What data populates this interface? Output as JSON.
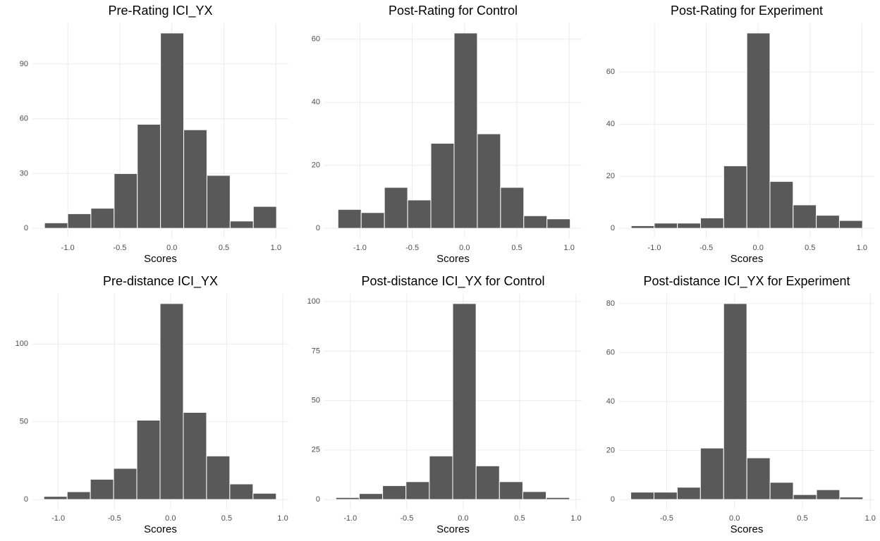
{
  "chart_data": [
    {
      "type": "histogram",
      "title": "Pre-Rating ICI_YX",
      "xlabel": "Scores",
      "color": "#595959",
      "grid": true,
      "bins": [
        -1.224,
        -1.001,
        -0.778,
        -0.555,
        -0.332,
        -0.109,
        0.114,
        0.337,
        0.56,
        0.783,
        1.006
      ],
      "values": [
        3,
        8,
        11,
        30,
        57,
        107,
        54,
        29,
        4,
        12
      ],
      "xlim": [
        -1.34,
        1.12
      ],
      "ylim": [
        -5.35,
        112.35
      ],
      "xticks": [
        {
          "value": -1,
          "label": "-1.0"
        },
        -0.5,
        {
          "value": 0,
          "label": "0.0"
        },
        0.5,
        {
          "value": 1,
          "label": "1.0"
        }
      ],
      "yticks": [
        0,
        30,
        60,
        90
      ]
    },
    {
      "type": "histogram",
      "title": "Post-Rating for Control",
      "xlabel": "Scores",
      "color": "#595959",
      "grid": true,
      "bins": [
        -1.21,
        -0.988,
        -0.766,
        -0.544,
        -0.322,
        -0.1,
        0.122,
        0.344,
        0.566,
        0.788,
        1.01
      ],
      "values": [
        6,
        5,
        13,
        9,
        27,
        62,
        30,
        13,
        4,
        3
      ],
      "xlim": [
        -1.34,
        1.12
      ],
      "ylim": [
        -3.1,
        65.1
      ],
      "xticks": [
        {
          "value": -1,
          "label": "-1.0"
        },
        -0.5,
        {
          "value": 0,
          "label": "0.0"
        },
        0.5,
        {
          "value": 1,
          "label": "1.0"
        }
      ],
      "yticks": [
        0,
        20,
        40,
        60
      ]
    },
    {
      "type": "histogram",
      "title": "Post-Rating for Experiment",
      "xlabel": "Scores",
      "color": "#595959",
      "grid": true,
      "bins": [
        -1.224,
        -1.001,
        -0.778,
        -0.555,
        -0.332,
        -0.109,
        0.114,
        0.337,
        0.56,
        0.783,
        1.006
      ],
      "values": [
        1,
        2,
        2,
        4,
        24,
        75,
        18,
        9,
        5,
        3
      ],
      "xlim": [
        -1.34,
        1.12
      ],
      "ylim": [
        -3.75,
        78.75
      ],
      "xticks": [
        {
          "value": -1,
          "label": "-1.0"
        },
        -0.5,
        {
          "value": 0,
          "label": "0.0"
        },
        0.5,
        {
          "value": 1,
          "label": "1.0"
        }
      ],
      "yticks": [
        0,
        20,
        40,
        60
      ]
    },
    {
      "type": "histogram",
      "title": "Pre-distance ICI_YX",
      "xlabel": "Scores",
      "color": "#595959",
      "grid": true,
      "bins": [
        -1.128,
        -0.921,
        -0.714,
        -0.507,
        -0.3,
        -0.093,
        0.114,
        0.321,
        0.528,
        0.735,
        0.942
      ],
      "values": [
        2,
        5,
        13,
        20,
        51,
        126,
        56,
        28,
        10,
        4
      ],
      "xlim": [
        -1.23,
        1.05
      ],
      "ylim": [
        -6.3,
        132.3
      ],
      "xticks": [
        {
          "value": -1,
          "label": "-1.0"
        },
        -0.5,
        {
          "value": 0,
          "label": "0.0"
        },
        0.5,
        {
          "value": 1,
          "label": "1.0"
        }
      ],
      "yticks": [
        0,
        50,
        100
      ]
    },
    {
      "type": "histogram",
      "title": "Post-distance ICI_YX for Control",
      "xlabel": "Scores",
      "color": "#595959",
      "grid": true,
      "bins": [
        -1.128,
        -0.921,
        -0.714,
        -0.507,
        -0.3,
        -0.093,
        0.114,
        0.321,
        0.528,
        0.735,
        0.942
      ],
      "values": [
        1,
        3,
        7,
        9,
        22,
        99,
        17,
        9,
        4,
        1
      ],
      "xlim": [
        -1.23,
        1.05
      ],
      "ylim": [
        -4.95,
        103.95
      ],
      "xticks": [
        {
          "value": -1,
          "label": "-1.0"
        },
        -0.5,
        {
          "value": 0,
          "label": "0.0"
        },
        0.5,
        {
          "value": 1,
          "label": "1.0"
        }
      ],
      "yticks": [
        0,
        25,
        50,
        75,
        100
      ]
    },
    {
      "type": "histogram",
      "title": "Post-distance ICI_YX for Experiment",
      "xlabel": "Scores",
      "color": "#595959",
      "grid": true,
      "bins": [
        -0.764,
        -0.593,
        -0.422,
        -0.251,
        -0.08,
        0.091,
        0.262,
        0.433,
        0.604,
        0.775,
        0.946
      ],
      "values": [
        3,
        3,
        5,
        21,
        80,
        17,
        7,
        2,
        4,
        1
      ],
      "xlim": [
        -0.85,
        1.03
      ],
      "ylim": [
        -4,
        84
      ],
      "xticks": [
        -0.5,
        {
          "value": 0,
          "label": "0.0"
        },
        0.5,
        {
          "value": 1,
          "label": "1.0"
        }
      ],
      "yticks": [
        0,
        20,
        40,
        60,
        80
      ]
    }
  ]
}
